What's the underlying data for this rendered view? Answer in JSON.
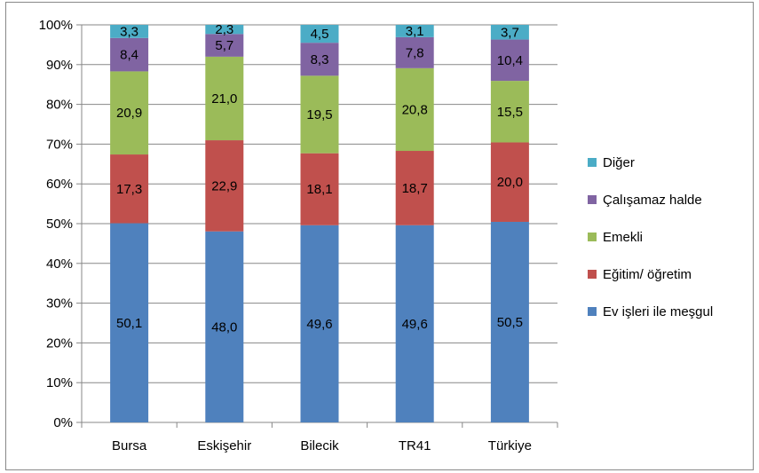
{
  "chart_data": {
    "type": "bar",
    "stacked": true,
    "percent_stacked": true,
    "categories": [
      "Bursa",
      "Eskişehir",
      "Bilecik",
      "TR41",
      "Türkiye"
    ],
    "series": [
      {
        "name": "Ev işleri ile meşgul",
        "color": "#4f81bd",
        "values": [
          50.1,
          48.0,
          49.6,
          49.6,
          50.5
        ],
        "labels": [
          "50,1",
          "48,0",
          "49,6",
          "49,6",
          "50,5"
        ]
      },
      {
        "name": "Eğitim/ öğretim",
        "color": "#c0504d",
        "values": [
          17.3,
          22.9,
          18.1,
          18.7,
          20.0
        ],
        "labels": [
          "17,3",
          "22,9",
          "18,1",
          "18,7",
          "20,0"
        ]
      },
      {
        "name": "Emekli",
        "color": "#9bbb59",
        "values": [
          20.9,
          21.0,
          19.5,
          20.8,
          15.5
        ],
        "labels": [
          "20,9",
          "21,0",
          "19,5",
          "20,8",
          "15,5"
        ]
      },
      {
        "name": "Çalışamaz halde",
        "color": "#8064a2",
        "values": [
          8.4,
          5.7,
          8.3,
          7.8,
          10.4
        ],
        "labels": [
          "8,4",
          "5,7",
          "8,3",
          "7,8",
          "10,4"
        ]
      },
      {
        "name": "Diğer",
        "color": "#4bacc6",
        "values": [
          3.3,
          2.3,
          4.5,
          3.1,
          3.7
        ],
        "labels": [
          "3,3",
          "2,3",
          "4,5",
          "3,1",
          "3,7"
        ]
      }
    ],
    "yticks": [
      "0%",
      "10%",
      "20%",
      "30%",
      "40%",
      "50%",
      "60%",
      "70%",
      "80%",
      "90%",
      "100%"
    ],
    "ylim": [
      0,
      100
    ],
    "grid": true,
    "legend_position": "right",
    "title": "",
    "xlabel": "",
    "ylabel": ""
  }
}
